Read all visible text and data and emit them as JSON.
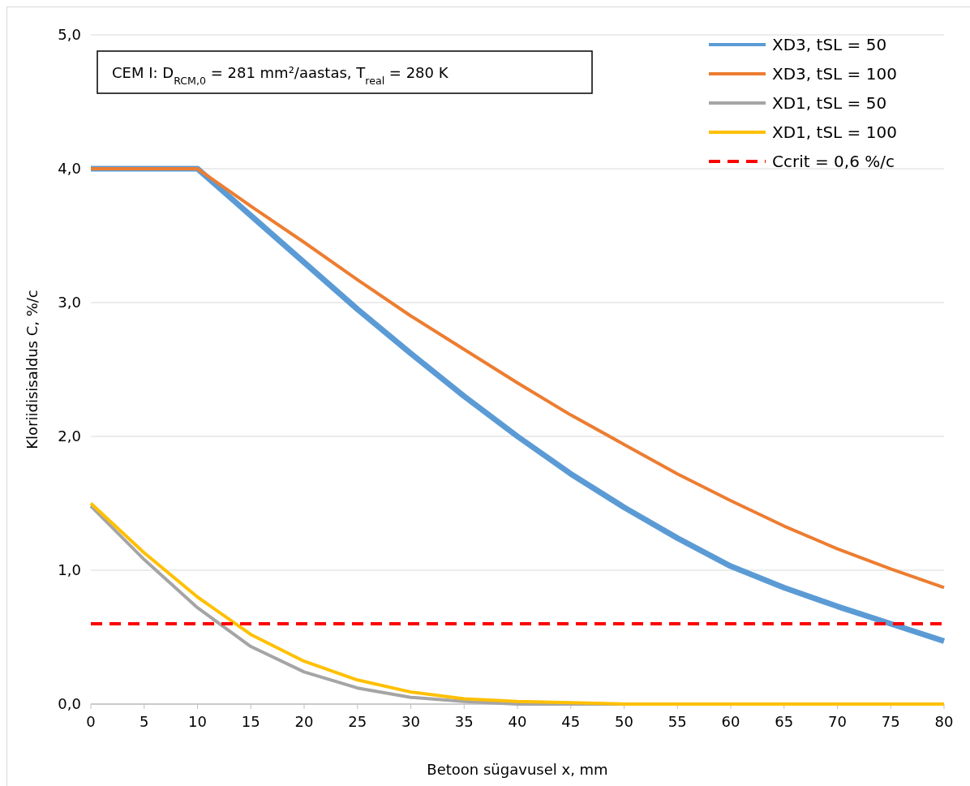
{
  "chart_data": {
    "type": "line",
    "xlabel": "Betoon sügavusel x, mm",
    "ylabel": "Kloriidisisaldus C, %/c",
    "annotations": [
      "CEM I: D$_{RCM,0}$ = 281 mm²/aastas, T$_{real}$ = 280 K"
    ],
    "x": [
      0,
      5,
      10,
      15,
      20,
      25,
      30,
      35,
      40,
      45,
      50,
      55,
      60,
      65,
      70,
      75,
      80
    ],
    "series": [
      {
        "name": "XD3, tSL = 50",
        "color": "#5b9bd5",
        "values": [
          4.0,
          4.0,
          4.0,
          3.65,
          3.3,
          2.95,
          2.62,
          2.3,
          2.0,
          1.72,
          1.47,
          1.24,
          1.03,
          0.87,
          0.73,
          0.6,
          0.47
        ]
      },
      {
        "name": "XD3, tSL = 100",
        "color": "#ed7d31",
        "values": [
          4.0,
          4.0,
          4.0,
          3.72,
          3.45,
          3.17,
          2.9,
          2.65,
          2.4,
          2.16,
          1.94,
          1.72,
          1.52,
          1.33,
          1.16,
          1.01,
          0.87
        ]
      },
      {
        "name": "XD1, tSL = 50",
        "color": "#a5a5a5",
        "values": [
          1.48,
          1.08,
          0.72,
          0.43,
          0.24,
          0.12,
          0.05,
          0.02,
          0.0,
          0.0,
          0.0,
          0.0,
          0.0,
          0.0,
          0.0,
          0.0,
          0.0
        ]
      },
      {
        "name": "XD1, tSL = 100",
        "color": "#ffc000",
        "values": [
          1.5,
          1.13,
          0.8,
          0.52,
          0.32,
          0.18,
          0.09,
          0.04,
          0.02,
          0.01,
          0.0,
          0.0,
          0.0,
          0.0,
          0.0,
          0.0,
          0.0
        ]
      },
      {
        "name": "Ccrit = 0,6 %/c",
        "color": "#ff0000",
        "line_style": "dashed",
        "values": [
          0.6,
          0.6,
          0.6,
          0.6,
          0.6,
          0.6,
          0.6,
          0.6,
          0.6,
          0.6,
          0.6,
          0.6,
          0.6,
          0.6,
          0.6,
          0.6,
          0.6
        ]
      }
    ],
    "xlim": [
      0,
      80
    ],
    "xticks": [
      0,
      5,
      10,
      15,
      20,
      25,
      30,
      35,
      40,
      45,
      50,
      55,
      60,
      65,
      70,
      75,
      80
    ],
    "ylim": [
      0,
      5
    ],
    "yticks": [
      {
        "value": 0,
        "label": "0,0"
      },
      {
        "value": 1,
        "label": "1,0"
      },
      {
        "value": 2,
        "label": "2,0"
      },
      {
        "value": 3,
        "label": "3,0"
      },
      {
        "value": 4,
        "label": "4,0"
      },
      {
        "value": 5,
        "label": "5,0"
      }
    ],
    "grid": "y",
    "legend": "top right",
    "marker": "none",
    "line_style": "solid"
  }
}
